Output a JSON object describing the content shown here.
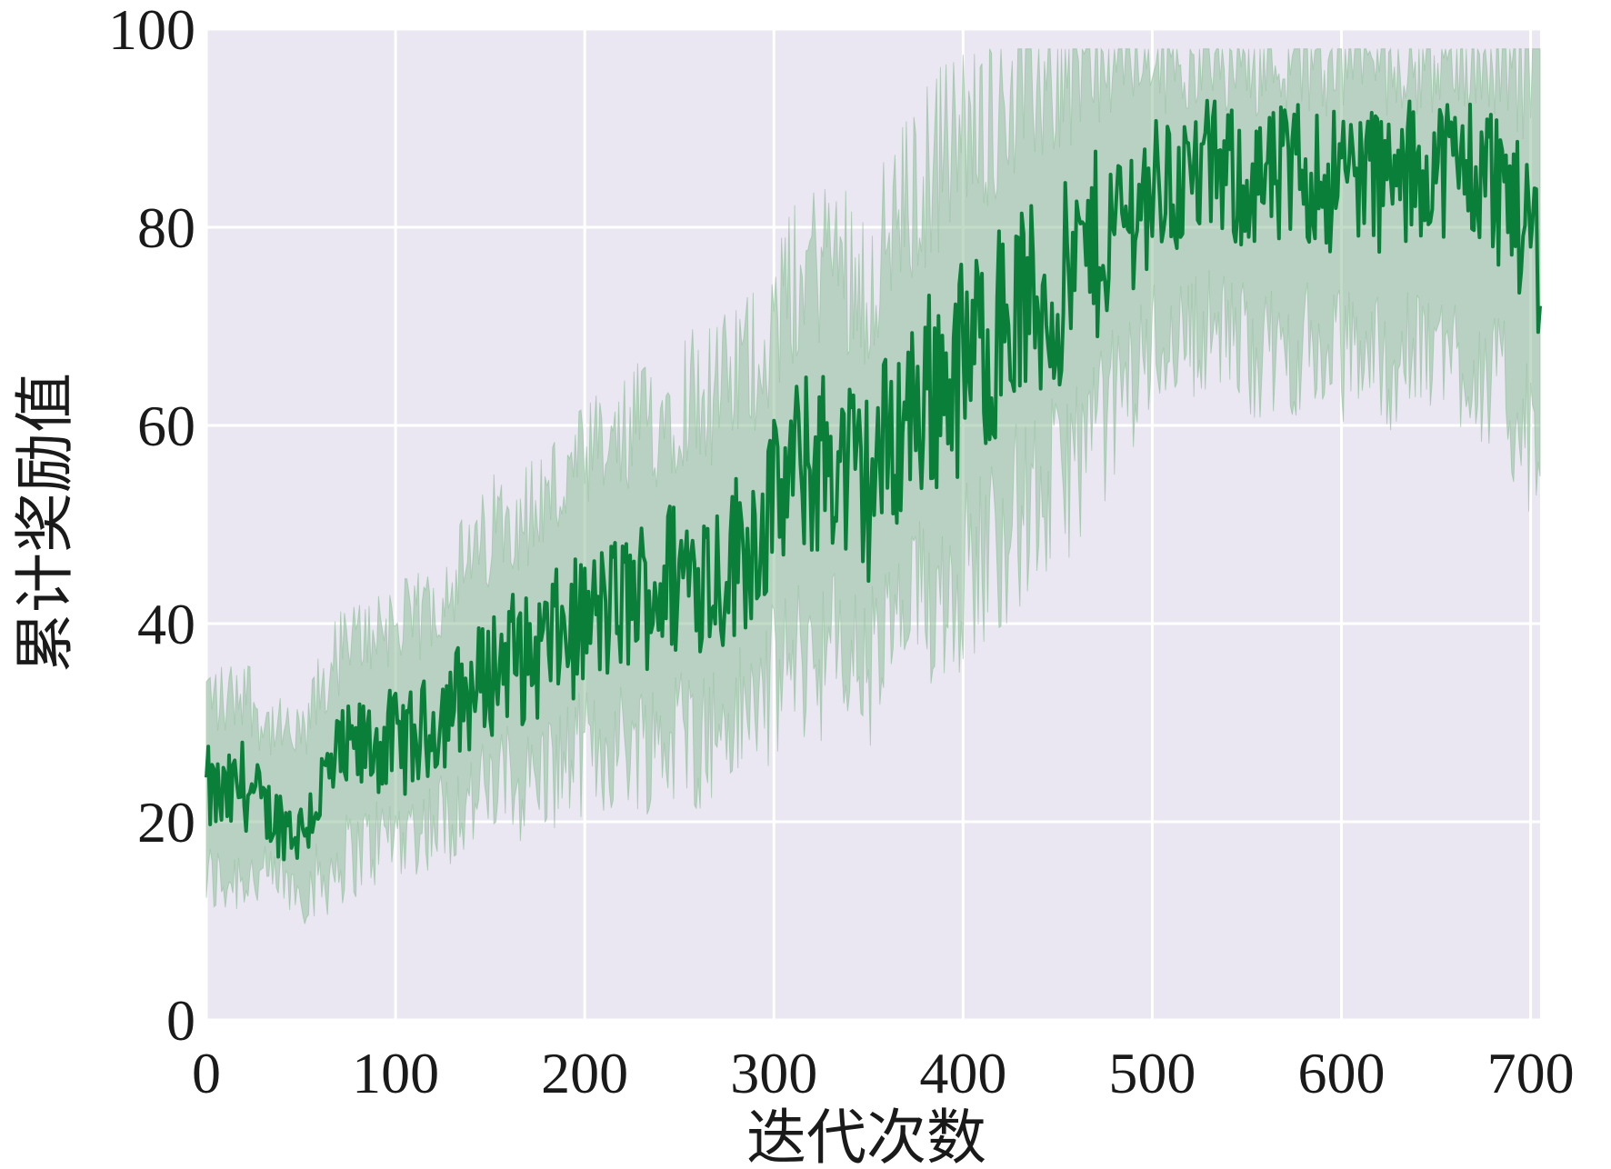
{
  "chart_data": {
    "type": "line",
    "title": "",
    "xlabel": "迭代次数",
    "ylabel": "累计奖励值",
    "xlim": [
      0,
      705
    ],
    "ylim": [
      0,
      100
    ],
    "xticks": [
      0,
      100,
      200,
      300,
      400,
      500,
      600,
      700
    ],
    "yticks": [
      0,
      20,
      40,
      60,
      80,
      100
    ],
    "xtick_labels": [
      "0",
      "100",
      "200",
      "300",
      "400",
      "500",
      "600",
      "700"
    ],
    "ytick_labels": [
      "0",
      "20",
      "40",
      "60",
      "80",
      "100"
    ],
    "grid": true,
    "legend": "none",
    "colors": {
      "plot_background": "#eae7f2",
      "grid": "#ffffff",
      "line": "#0a7f3a",
      "band": "#8fbf9a"
    },
    "series": [
      {
        "x": [
          0,
          10,
          20,
          30,
          40,
          50,
          60,
          70,
          80,
          90,
          100,
          110,
          120,
          130,
          140,
          150,
          160,
          170,
          180,
          190,
          200,
          210,
          220,
          230,
          240,
          250,
          260,
          270,
          280,
          290,
          300,
          310,
          320,
          330,
          340,
          350,
          360,
          370,
          380,
          390,
          400,
          410,
          420,
          430,
          440,
          450,
          460,
          470,
          480,
          490,
          500,
          510,
          520,
          530,
          540,
          550,
          560,
          570,
          580,
          590,
          600,
          610,
          620,
          630,
          640,
          650,
          660,
          670,
          680,
          690,
          700,
          705
        ],
        "mean": [
          23,
          22,
          24,
          21,
          20,
          19,
          23,
          26,
          27,
          28,
          28,
          28,
          30,
          32,
          33,
          35,
          37,
          36,
          38,
          39,
          40,
          41,
          42,
          43,
          44,
          45,
          46,
          45,
          47,
          49,
          52,
          55,
          56,
          57,
          55,
          54,
          58,
          61,
          63,
          65,
          66,
          68,
          70,
          72,
          72,
          73,
          76,
          78,
          80,
          82,
          84,
          84,
          85,
          86,
          85,
          85,
          84,
          85,
          86,
          85,
          85,
          86,
          85,
          84,
          86,
          87,
          86,
          86,
          85,
          83,
          80,
          78
        ],
        "lower": [
          14,
          14,
          15,
          14,
          14,
          13,
          14,
          16,
          17,
          18,
          19,
          19,
          20,
          21,
          22,
          23,
          24,
          24,
          25,
          26,
          27,
          27,
          28,
          28,
          28,
          29,
          29,
          29,
          30,
          32,
          34,
          36,
          37,
          37,
          36,
          35,
          38,
          40,
          42,
          44,
          45,
          47,
          49,
          51,
          52,
          54,
          57,
          59,
          62,
          65,
          68,
          69,
          69,
          70,
          69,
          68,
          67,
          67,
          68,
          67,
          67,
          68,
          67,
          66,
          67,
          68,
          67,
          66,
          64,
          62,
          58,
          55
        ],
        "upper": [
          33,
          32,
          34,
          30,
          29,
          28,
          33,
          37,
          38,
          40,
          40,
          40,
          42,
          45,
          46,
          49,
          52,
          51,
          53,
          54,
          56,
          57,
          58,
          60,
          61,
          63,
          64,
          63,
          65,
          67,
          70,
          74,
          76,
          78,
          76,
          74,
          79,
          82,
          85,
          88,
          89,
          91,
          93,
          95,
          95,
          96,
          97,
          98,
          98,
          98,
          98,
          98,
          98,
          98,
          98,
          98,
          98,
          98,
          98,
          98,
          98,
          98,
          98,
          98,
          98,
          98,
          98,
          98,
          98,
          98,
          97,
          96
        ]
      }
    ]
  }
}
